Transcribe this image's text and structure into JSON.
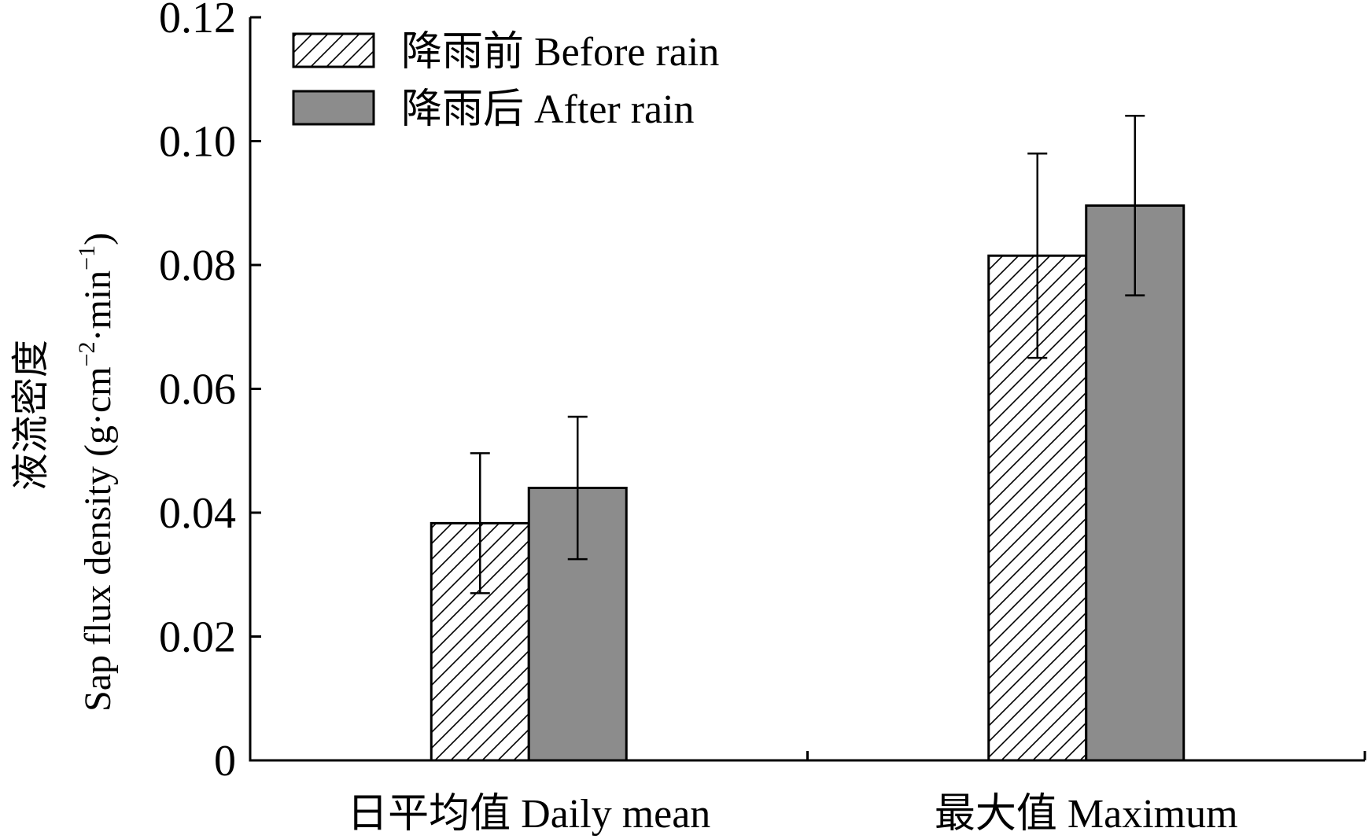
{
  "chart_data": {
    "type": "bar",
    "categories": [
      "日平均值 Daily mean",
      "最大值 Maximum"
    ],
    "series": [
      {
        "name": "降雨前 Before rain",
        "values": [
          0.0383,
          0.0815
        ],
        "errors": [
          0.0113,
          0.0165
        ],
        "fill": "hatched"
      },
      {
        "name": "降雨后 After rain",
        "values": [
          0.044,
          0.0896
        ],
        "errors": [
          0.0115,
          0.0145
        ],
        "fill": "#8c8c8c"
      }
    ],
    "ylabel": "液流密度 Sap flux density (g·cm⁻²·min⁻¹)",
    "ylabel_cn": "液流密度",
    "ylabel_en": "Sap flux density (g·cm",
    "ylabel_sup1": "−2",
    "ylabel_mid": "·min",
    "ylabel_sup2": "−1",
    "ylabel_end": ")",
    "ylim": [
      0,
      0.12
    ],
    "yticks": [
      "0",
      "0.02",
      "0.04",
      "0.06",
      "0.08",
      "0.10",
      "0.12"
    ],
    "ytick_values": [
      0,
      0.02,
      0.04,
      0.06,
      0.08,
      0.1,
      0.12
    ],
    "legend_position": "top-left",
    "grid": false,
    "colors": {
      "bar_dark": "#8c8c8c",
      "bar_light": "#ffffff",
      "stroke": "#000000"
    }
  }
}
